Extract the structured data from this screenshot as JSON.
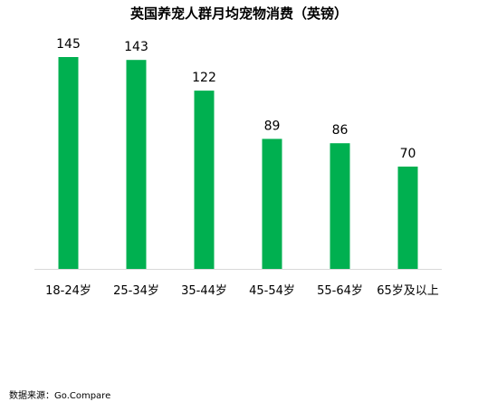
{
  "chart_data": {
    "type": "bar",
    "title": "英国养宠人群月均宠物消费（英镑）",
    "categories": [
      "18-24岁",
      "25-34岁",
      "35-44岁",
      "45-54岁",
      "55-64岁",
      "65岁及以上"
    ],
    "values": [
      145,
      143,
      122,
      89,
      86,
      70
    ],
    "xlabel": "",
    "ylabel": "",
    "ylim": [
      0,
      145
    ],
    "grid": false,
    "legend": "none",
    "bar_color": "#00B050",
    "axis_color": "#D9D9D9"
  },
  "source": "数据来源：Go.Compare"
}
